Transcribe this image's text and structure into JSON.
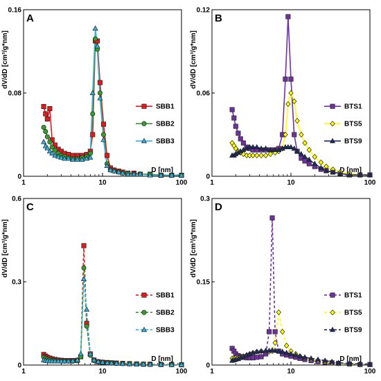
{
  "chart_data": [
    {
      "type": "line",
      "panel_label": "A",
      "ylabel": "dV/dD [cm³/g*nm]",
      "xlabel": "D [nm]",
      "xscale": "log",
      "xlim": [
        1,
        100
      ],
      "ylim": [
        0,
        0.16
      ],
      "yticks": [
        "0",
        "0.08",
        "0.16"
      ],
      "xticks": [
        "1",
        "10",
        "100"
      ],
      "line_style": "solid",
      "legend_position": "right",
      "series": [
        {
          "name": "SBB1",
          "color": "#e31a1c",
          "marker": "square",
          "x": [
            1.8,
            1.9,
            2.0,
            2.15,
            2.3,
            2.5,
            2.75,
            3.0,
            3.3,
            3.7,
            4.2,
            4.8,
            5.5,
            6.3,
            7.0,
            7.5,
            8.1,
            8.6,
            9.3,
            10.3,
            11.4,
            12.6,
            14,
            16,
            18,
            21,
            25,
            30,
            40,
            55,
            75,
            100
          ],
          "y": [
            0.067,
            0.06,
            0.055,
            0.065,
            0.035,
            0.03,
            0.026,
            0.024,
            0.022,
            0.021,
            0.02,
            0.02,
            0.02,
            0.021,
            0.024,
            0.04,
            0.13,
            0.13,
            0.09,
            0.05,
            0.02,
            0.008,
            0.006,
            0.005,
            0.004,
            0.003,
            0.003,
            0.002,
            0.002,
            0.001,
            0.001,
            0.001
          ]
        },
        {
          "name": "SBB2",
          "color": "#33a02c",
          "marker": "circle",
          "x": [
            1.8,
            1.9,
            2.0,
            2.15,
            2.3,
            2.5,
            2.75,
            3.0,
            3.3,
            3.7,
            4.2,
            4.8,
            5.5,
            6.3,
            7.0,
            7.5,
            8.1,
            8.6,
            9.3,
            10.3,
            11.4,
            12.6,
            14,
            16,
            18,
            21,
            25,
            30,
            40,
            55,
            75,
            100
          ],
          "y": [
            0.047,
            0.043,
            0.038,
            0.033,
            0.028,
            0.025,
            0.022,
            0.02,
            0.019,
            0.018,
            0.017,
            0.017,
            0.018,
            0.019,
            0.022,
            0.06,
            0.132,
            0.122,
            0.08,
            0.04,
            0.012,
            0.006,
            0.005,
            0.004,
            0.003,
            0.003,
            0.002,
            0.002,
            0.002,
            0.001,
            0.001,
            0.001
          ]
        },
        {
          "name": "SBB3",
          "color": "#33b0e0",
          "marker": "triangle",
          "x": [
            1.8,
            1.9,
            2.0,
            2.15,
            2.3,
            2.5,
            2.75,
            3.0,
            3.3,
            3.7,
            4.2,
            4.8,
            5.5,
            6.3,
            7.0,
            7.5,
            8.1,
            8.6,
            9.3,
            10.3,
            11.4,
            12.6,
            14,
            16,
            18,
            21,
            25,
            30,
            40,
            55,
            75,
            100
          ],
          "y": [
            0.033,
            0.029,
            0.027,
            0.024,
            0.022,
            0.02,
            0.019,
            0.018,
            0.017,
            0.017,
            0.016,
            0.016,
            0.016,
            0.017,
            0.018,
            0.08,
            0.142,
            0.125,
            0.075,
            0.035,
            0.01,
            0.006,
            0.005,
            0.004,
            0.003,
            0.002,
            0.002,
            0.002,
            0.001,
            0.001,
            0.001,
            0.001
          ]
        }
      ]
    },
    {
      "type": "line",
      "panel_label": "B",
      "ylabel": "dV/dD [cm³/g*nm]",
      "xlabel": "D [nm]",
      "xscale": "log",
      "xlim": [
        1,
        100
      ],
      "ylim": [
        0,
        0.12
      ],
      "yticks": [
        "0",
        "0.06",
        "0.12"
      ],
      "xticks": [
        "1",
        "10",
        "100"
      ],
      "line_style": "solid",
      "legend_position": "right",
      "series": [
        {
          "name": "BTS1",
          "color": "#7030a0",
          "marker": "square",
          "x": [
            1.8,
            1.9,
            2.0,
            2.15,
            2.3,
            2.5,
            2.75,
            3.0,
            3.3,
            3.7,
            4.2,
            4.8,
            5.5,
            6.3,
            7.0,
            7.8,
            8.5,
            9.2,
            10.0,
            11.0,
            12.0,
            13.5,
            15,
            17,
            20,
            24,
            28,
            34,
            42,
            55,
            75,
            100
          ],
          "y": [
            0.048,
            0.042,
            0.036,
            0.031,
            0.027,
            0.024,
            0.021,
            0.02,
            0.019,
            0.019,
            0.019,
            0.019,
            0.019,
            0.019,
            0.02,
            0.03,
            0.07,
            0.115,
            0.07,
            0.03,
            0.018,
            0.013,
            0.011,
            0.009,
            0.007,
            0.005,
            0.004,
            0.003,
            0.002,
            0.001,
            0.001,
            0.001
          ]
        },
        {
          "name": "BTS5",
          "color": "#ffff00",
          "marker": "diamond",
          "x": [
            1.8,
            1.9,
            2.0,
            2.15,
            2.3,
            2.5,
            2.75,
            3.0,
            3.3,
            3.7,
            4.2,
            4.8,
            5.5,
            6.3,
            7.0,
            7.8,
            8.5,
            9.2,
            10.0,
            11.0,
            12.0,
            13.5,
            15,
            17,
            20,
            24,
            28,
            34,
            42,
            55,
            75,
            100
          ],
          "y": [
            0.024,
            0.022,
            0.02,
            0.018,
            0.017,
            0.016,
            0.015,
            0.015,
            0.015,
            0.015,
            0.015,
            0.015,
            0.016,
            0.017,
            0.018,
            0.02,
            0.03,
            0.052,
            0.06,
            0.054,
            0.04,
            0.03,
            0.024,
            0.019,
            0.014,
            0.01,
            0.007,
            0.005,
            0.003,
            0.002,
            0.001,
            0.001
          ]
        },
        {
          "name": "BTS9",
          "color": "#1f2a60",
          "marker": "triangle",
          "x": [
            1.8,
            1.9,
            2.0,
            2.15,
            2.3,
            2.5,
            2.75,
            3.0,
            3.3,
            3.7,
            4.2,
            4.8,
            5.5,
            6.3,
            7.0,
            7.8,
            8.5,
            9.2,
            10.0,
            11.0,
            12.0,
            13.5,
            15,
            17,
            20,
            24,
            28,
            34,
            42,
            55,
            75,
            100
          ],
          "y": [
            0.015,
            0.015,
            0.016,
            0.017,
            0.018,
            0.019,
            0.02,
            0.021,
            0.021,
            0.021,
            0.02,
            0.02,
            0.019,
            0.019,
            0.019,
            0.02,
            0.021,
            0.021,
            0.021,
            0.02,
            0.018,
            0.016,
            0.014,
            0.012,
            0.009,
            0.006,
            0.004,
            0.003,
            0.002,
            0.001,
            0.001,
            0.001
          ]
        }
      ]
    },
    {
      "type": "line",
      "panel_label": "C",
      "ylabel": "dV/dD [cm³/g*nm]",
      "xlabel": "D [nm]",
      "xscale": "log",
      "xlim": [
        1,
        100
      ],
      "ylim": [
        0,
        0.6
      ],
      "yticks": [
        "0",
        "0.3",
        "0.6"
      ],
      "xticks": [
        "1",
        "10",
        "100"
      ],
      "line_style": "dashed",
      "legend_position": "right",
      "series": [
        {
          "name": "SBB1",
          "color": "#e31a1c",
          "marker": "square",
          "x": [
            1.8,
            1.9,
            2.0,
            2.15,
            2.3,
            2.5,
            2.75,
            3.0,
            3.3,
            3.7,
            4.2,
            4.8,
            5.3,
            5.8,
            6.3,
            7.0,
            7.8,
            8.8,
            10,
            11.5,
            13,
            15,
            18,
            22,
            27,
            33,
            40,
            55,
            75,
            100
          ],
          "y": [
            0.038,
            0.032,
            0.028,
            0.025,
            0.022,
            0.02,
            0.018,
            0.017,
            0.016,
            0.016,
            0.016,
            0.017,
            0.03,
            0.43,
            0.15,
            0.04,
            0.018,
            0.012,
            0.01,
            0.009,
            0.008,
            0.007,
            0.006,
            0.005,
            0.004,
            0.003,
            0.003,
            0.002,
            0.002,
            0.001
          ]
        },
        {
          "name": "SBB2",
          "color": "#33a02c",
          "marker": "circle",
          "x": [
            1.8,
            1.9,
            2.0,
            2.15,
            2.3,
            2.5,
            2.75,
            3.0,
            3.3,
            3.7,
            4.2,
            4.8,
            5.3,
            5.8,
            6.3,
            7.0,
            7.8,
            8.8,
            10,
            11.5,
            13,
            15,
            18,
            22,
            27,
            33,
            40,
            55,
            75,
            100
          ],
          "y": [
            0.028,
            0.024,
            0.021,
            0.019,
            0.017,
            0.016,
            0.015,
            0.014,
            0.014,
            0.014,
            0.014,
            0.015,
            0.03,
            0.35,
            0.14,
            0.035,
            0.016,
            0.011,
            0.009,
            0.008,
            0.007,
            0.006,
            0.005,
            0.004,
            0.004,
            0.003,
            0.002,
            0.002,
            0.001,
            0.001
          ]
        },
        {
          "name": "SBB3",
          "color": "#33b0e0",
          "marker": "triangle",
          "x": [
            1.8,
            1.9,
            2.0,
            2.15,
            2.3,
            2.5,
            2.75,
            3.0,
            3.3,
            3.7,
            4.2,
            4.8,
            5.3,
            5.8,
            6.3,
            7.0,
            7.8,
            8.8,
            10,
            11.5,
            13,
            15,
            18,
            22,
            27,
            33,
            40,
            55,
            75,
            100
          ],
          "y": [
            0.018,
            0.016,
            0.015,
            0.014,
            0.014,
            0.014,
            0.014,
            0.014,
            0.014,
            0.014,
            0.015,
            0.018,
            0.04,
            0.31,
            0.2,
            0.04,
            0.018,
            0.012,
            0.01,
            0.008,
            0.007,
            0.006,
            0.005,
            0.004,
            0.003,
            0.003,
            0.002,
            0.002,
            0.001,
            0.001
          ]
        }
      ]
    },
    {
      "type": "line",
      "panel_label": "D",
      "ylabel": "dV/dD [cm³/g*nm]",
      "xlabel": "D [nm]",
      "xscale": "log",
      "xlim": [
        1,
        100
      ],
      "ylim": [
        0,
        0.3
      ],
      "yticks": [
        "0",
        "0.15",
        "0.3"
      ],
      "xticks": [
        "1",
        "10",
        "100"
      ],
      "line_style": "dashed",
      "legend_position": "right",
      "series": [
        {
          "name": "BTS1",
          "color": "#7030a0",
          "marker": "square",
          "x": [
            1.8,
            1.9,
            2.0,
            2.15,
            2.3,
            2.5,
            2.75,
            3.0,
            3.3,
            3.7,
            4.2,
            4.8,
            5.3,
            5.8,
            6.3,
            7.0,
            7.8,
            8.8,
            10,
            11.5,
            13,
            15,
            18,
            22,
            27,
            33,
            40,
            55,
            75,
            100
          ],
          "y": [
            0.03,
            0.025,
            0.02,
            0.017,
            0.015,
            0.014,
            0.013,
            0.013,
            0.013,
            0.014,
            0.015,
            0.02,
            0.06,
            0.265,
            0.06,
            0.025,
            0.02,
            0.018,
            0.016,
            0.014,
            0.012,
            0.01,
            0.008,
            0.006,
            0.005,
            0.004,
            0.003,
            0.002,
            0.001,
            0.001
          ]
        },
        {
          "name": "BTS5",
          "color": "#ffff00",
          "marker": "diamond",
          "x": [
            1.8,
            1.9,
            2.0,
            2.15,
            2.3,
            2.5,
            2.75,
            3.0,
            3.3,
            3.7,
            4.2,
            4.8,
            5.3,
            5.8,
            6.3,
            7.0,
            7.8,
            8.8,
            10,
            11.5,
            13,
            15,
            18,
            22,
            27,
            33,
            40,
            55,
            75,
            100
          ],
          "y": [
            0.012,
            0.012,
            0.013,
            0.013,
            0.014,
            0.016,
            0.018,
            0.02,
            0.022,
            0.024,
            0.025,
            0.025,
            0.024,
            0.025,
            0.04,
            0.095,
            0.06,
            0.035,
            0.025,
            0.02,
            0.016,
            0.013,
            0.01,
            0.008,
            0.006,
            0.004,
            0.003,
            0.002,
            0.001,
            0.001
          ]
        },
        {
          "name": "BTS9",
          "color": "#1f2a60",
          "marker": "triangle",
          "x": [
            1.8,
            1.9,
            2.0,
            2.15,
            2.3,
            2.5,
            2.75,
            3.0,
            3.3,
            3.7,
            4.2,
            4.8,
            5.3,
            5.8,
            6.3,
            7.0,
            7.8,
            8.8,
            10,
            11.5,
            13,
            15,
            18,
            22,
            27,
            33,
            40,
            55,
            75,
            100
          ],
          "y": [
            0.008,
            0.009,
            0.01,
            0.011,
            0.013,
            0.015,
            0.018,
            0.02,
            0.022,
            0.024,
            0.025,
            0.026,
            0.026,
            0.027,
            0.026,
            0.025,
            0.024,
            0.022,
            0.02,
            0.018,
            0.016,
            0.014,
            0.012,
            0.01,
            0.008,
            0.006,
            0.004,
            0.003,
            0.002,
            0.001
          ]
        }
      ]
    }
  ]
}
